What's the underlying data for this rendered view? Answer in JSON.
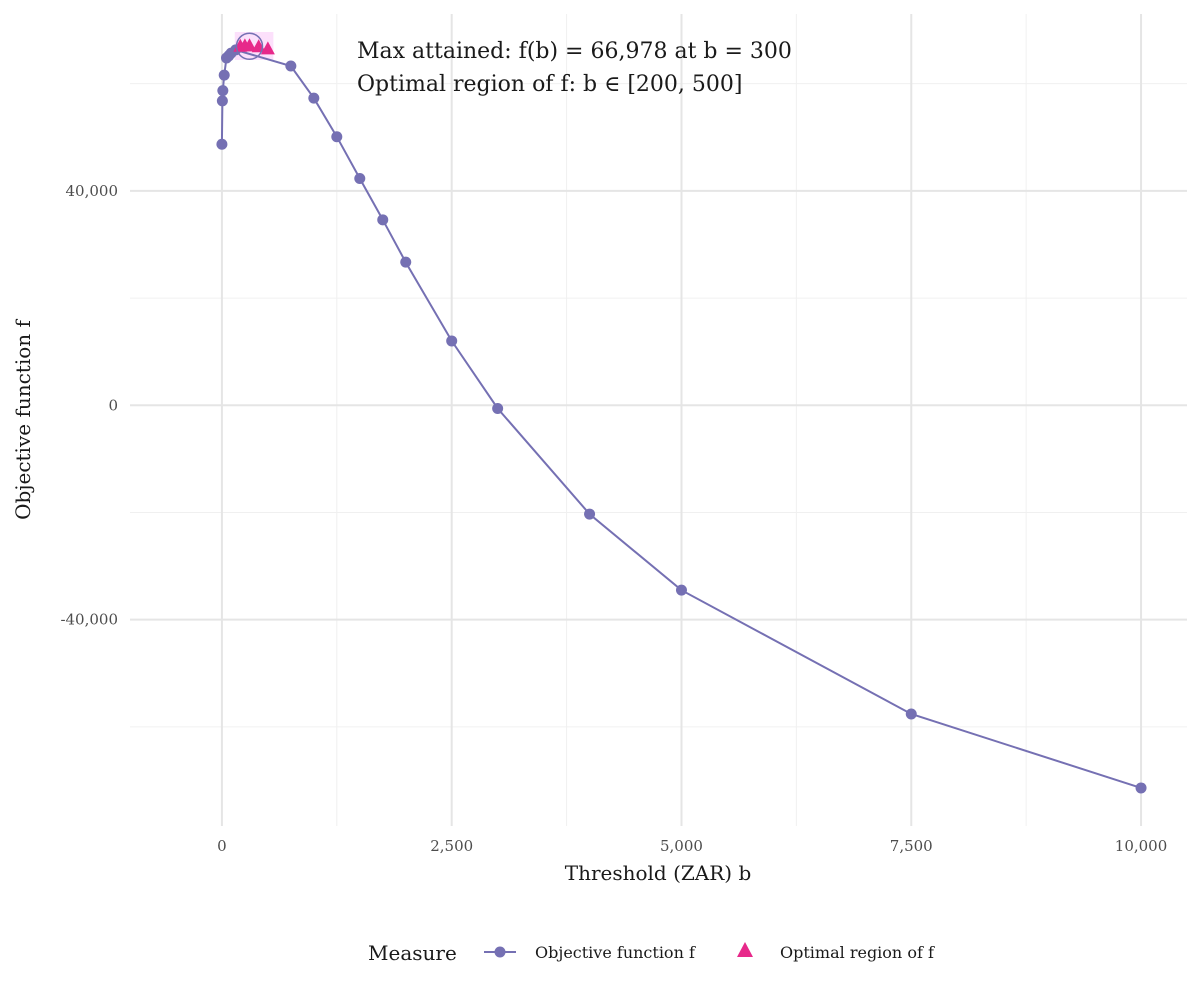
{
  "chart_data": {
    "type": "line",
    "xlabel": "Threshold (ZAR) b",
    "ylabel": "Objective function f",
    "xlim": [
      -1000,
      10500
    ],
    "ylim": [
      -78500,
      73000
    ],
    "x_ticks": [
      0,
      2500,
      5000,
      7500,
      10000
    ],
    "x_tick_labels": [
      "0",
      "2,500",
      "5,000",
      "7,500",
      "10,000"
    ],
    "y_ticks": [
      -40000,
      0,
      40000
    ],
    "y_tick_labels": [
      "-40,000",
      "0",
      "40,000"
    ],
    "grid": true,
    "legend_position": "bottom",
    "legend_title": "Measure",
    "annotation": [
      "Max attained: f(b) = 66,978 at b = 300",
      "Optimal region of f: b ∈  [200, 500]"
    ],
    "max_point": {
      "x": 300,
      "y": 66978
    },
    "optimal_region": [
      200,
      500
    ],
    "series": [
      {
        "name": "Objective function f",
        "color": "#7570b3",
        "marker": "circle",
        "points": [
          {
            "x": 0,
            "y": 48700
          },
          {
            "x": 5,
            "y": 56800
          },
          {
            "x": 10,
            "y": 58700
          },
          {
            "x": 25,
            "y": 61600
          },
          {
            "x": 50,
            "y": 64800
          },
          {
            "x": 75,
            "y": 65200
          },
          {
            "x": 100,
            "y": 65700
          },
          {
            "x": 150,
            "y": 66300
          },
          {
            "x": 750,
            "y": 63300
          },
          {
            "x": 1000,
            "y": 57300
          },
          {
            "x": 1250,
            "y": 50100
          },
          {
            "x": 1500,
            "y": 42300
          },
          {
            "x": 1750,
            "y": 34600
          },
          {
            "x": 2000,
            "y": 26700
          },
          {
            "x": 2500,
            "y": 12000
          },
          {
            "x": 3000,
            "y": -600
          },
          {
            "x": 4000,
            "y": -20300
          },
          {
            "x": 5000,
            "y": -34500
          },
          {
            "x": 7500,
            "y": -57600
          },
          {
            "x": 10000,
            "y": -71400
          }
        ]
      },
      {
        "name": "Optimal region of f",
        "color": "#e7298a",
        "marker": "triangle",
        "points": [
          {
            "x": 200,
            "y": 66900
          },
          {
            "x": 250,
            "y": 66950
          },
          {
            "x": 300,
            "y": 66978
          },
          {
            "x": 400,
            "y": 66800
          },
          {
            "x": 500,
            "y": 66400
          }
        ]
      }
    ]
  }
}
